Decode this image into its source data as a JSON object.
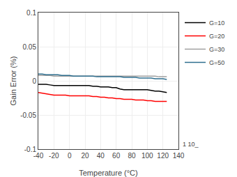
{
  "chart_data": {
    "type": "line",
    "xlabel": "Temperature (°C)",
    "ylabel": "Gain Error (%)",
    "x": [
      -40,
      -35,
      -30,
      -25,
      -20,
      -15,
      -10,
      -5,
      0,
      5,
      10,
      15,
      20,
      25,
      30,
      35,
      40,
      45,
      50,
      55,
      60,
      65,
      70,
      75,
      80,
      85,
      90,
      95,
      100,
      105,
      110,
      115,
      120,
      125
    ],
    "series": [
      {
        "name": "G=10",
        "color": "#000000",
        "values": [
          -0.005,
          -0.005,
          -0.005,
          -0.006,
          -0.007,
          -0.007,
          -0.007,
          -0.007,
          -0.007,
          -0.007,
          -0.007,
          -0.007,
          -0.007,
          -0.007,
          -0.008,
          -0.008,
          -0.009,
          -0.009,
          -0.009,
          -0.01,
          -0.01,
          -0.012,
          -0.013,
          -0.013,
          -0.013,
          -0.013,
          -0.013,
          -0.013,
          -0.013,
          -0.014,
          -0.015,
          -0.015,
          -0.016,
          -0.017
        ]
      },
      {
        "name": "G=20",
        "color": "#ff0000",
        "values": [
          -0.017,
          -0.018,
          -0.019,
          -0.02,
          -0.021,
          -0.021,
          -0.021,
          -0.021,
          -0.022,
          -0.022,
          -0.022,
          -0.022,
          -0.022,
          -0.022,
          -0.023,
          -0.023,
          -0.024,
          -0.024,
          -0.025,
          -0.025,
          -0.026,
          -0.026,
          -0.027,
          -0.027,
          -0.027,
          -0.028,
          -0.028,
          -0.028,
          -0.029,
          -0.029,
          -0.03,
          -0.03,
          -0.03,
          -0.03
        ]
      },
      {
        "name": "G=30",
        "color": "#a0a0a0",
        "values": [
          0.008,
          0.008,
          0.008,
          0.008,
          0.007,
          0.007,
          0.007,
          0.007,
          0.007,
          0.007,
          0.007,
          0.007,
          0.007,
          0.007,
          0.007,
          0.007,
          0.007,
          0.007,
          0.007,
          0.007,
          0.007,
          0.007,
          0.007,
          0.007,
          0.007,
          0.007,
          0.007,
          0.007,
          0.007,
          0.007,
          0.007,
          0.006,
          0.006,
          0.006
        ]
      },
      {
        "name": "G=50",
        "color": "#2e6e8e",
        "values": [
          0.01,
          0.01,
          0.009,
          0.009,
          0.009,
          0.009,
          0.008,
          0.008,
          0.008,
          0.007,
          0.007,
          0.007,
          0.007,
          0.007,
          0.007,
          0.006,
          0.006,
          0.006,
          0.006,
          0.006,
          0.006,
          0.006,
          0.005,
          0.005,
          0.005,
          0.005,
          0.004,
          0.004,
          0.004,
          0.004,
          0.003,
          0.003,
          0.003,
          0.002
        ]
      }
    ],
    "xlim": [
      -40,
      140
    ],
    "ylim": [
      -0.1,
      0.1
    ],
    "xticks": [
      -40,
      -20,
      0,
      20,
      40,
      60,
      80,
      100,
      120,
      140
    ],
    "yticks": [
      -0.1,
      -0.05,
      0,
      0.05,
      0.1
    ],
    "grid": true,
    "legend": "upper right",
    "annotations": [
      {
        "text": "1 10_"
      }
    ]
  }
}
